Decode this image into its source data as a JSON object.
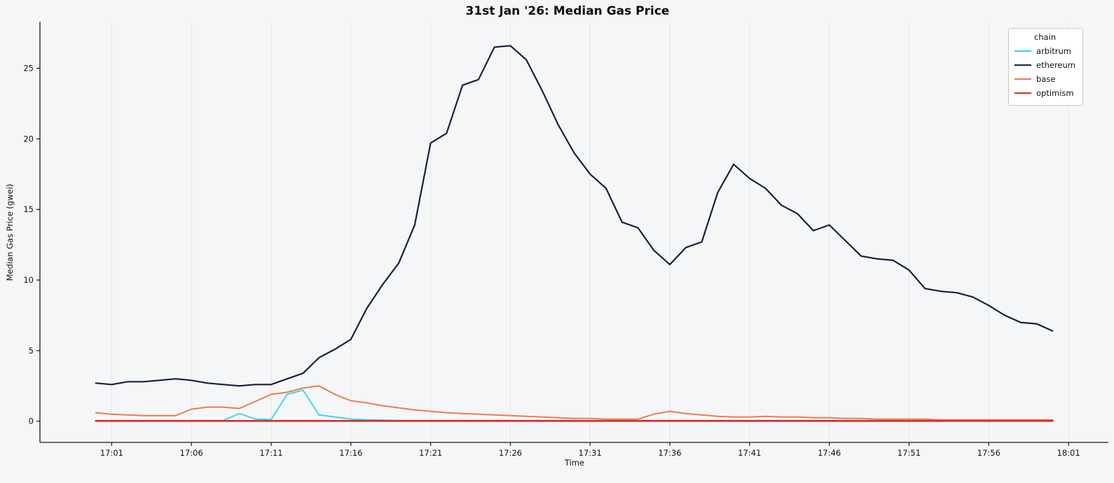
{
  "chart_data": {
    "type": "line",
    "title": "31st Jan '26: Median Gas Price",
    "xlabel": "Time",
    "ylabel": "Median Gas Price (gwei)",
    "legend_title": "chain",
    "legend_position": "upper right",
    "grid": "vertical",
    "grid_color": "#e4e5e7",
    "background_color": "#f5f6f7",
    "x_tick_labels": [
      "17:01",
      "17:06",
      "17:11",
      "17:16",
      "17:21",
      "17:26",
      "17:31",
      "17:36",
      "17:41",
      "17:46",
      "17:51",
      "17:56",
      "18:01"
    ],
    "x_tick_minutes": [
      1,
      6,
      11,
      16,
      21,
      26,
      31,
      36,
      41,
      46,
      51,
      56,
      61
    ],
    "y_ticks": [
      0,
      5,
      10,
      15,
      20,
      25
    ],
    "xlim_minutes": [
      -3.5,
      63.5
    ],
    "ylim": [
      -1.5,
      28.2
    ],
    "x_minutes": [
      0,
      1,
      2,
      3,
      4,
      5,
      6,
      7,
      8,
      9,
      10,
      11,
      12,
      13,
      14,
      15,
      16,
      17,
      18,
      19,
      20,
      21,
      22,
      23,
      24,
      25,
      26,
      27,
      28,
      29,
      30,
      31,
      32,
      33,
      34,
      35,
      36,
      37,
      38,
      39,
      40,
      41,
      42,
      43,
      44,
      45,
      46,
      47,
      48,
      49,
      50,
      51,
      52,
      53,
      54,
      55,
      56,
      57,
      58,
      59,
      60
    ],
    "series": [
      {
        "name": "arbitrum",
        "color": "#2fd5e8",
        "width": 1.8,
        "values": [
          0.03,
          0.03,
          0.03,
          0.03,
          0.03,
          0.03,
          0.03,
          0.03,
          0.05,
          0.55,
          0.15,
          0.12,
          1.9,
          2.2,
          0.45,
          0.3,
          0.15,
          0.1,
          0.08,
          0.05,
          0.05,
          0.05,
          0.05,
          0.05,
          0.05,
          0.05,
          0.05,
          0.05,
          0.05,
          0.05,
          0.05,
          0.05,
          0.05,
          0.05,
          0.05,
          0.05,
          0.05,
          0.05,
          0.05,
          0.05,
          0.05,
          0.05,
          0.05,
          0.05,
          0.05,
          0.05,
          0.05,
          0.05,
          0.05,
          0.05,
          0.05,
          0.05,
          0.05,
          0.05,
          0.05,
          0.05,
          0.05,
          0.05,
          0.05,
          0.05,
          0.05
        ]
      },
      {
        "name": "ethereum",
        "color": "#16203f",
        "width": 2.2,
        "values": [
          2.7,
          2.6,
          2.8,
          2.8,
          2.9,
          3.0,
          2.9,
          2.7,
          2.6,
          2.5,
          2.6,
          2.6,
          3.0,
          3.4,
          4.5,
          5.1,
          5.8,
          8.0,
          9.7,
          11.2,
          13.9,
          19.7,
          20.4,
          23.8,
          24.2,
          26.5,
          26.6,
          25.6,
          23.4,
          21.0,
          19.0,
          17.5,
          16.5,
          14.1,
          13.7,
          12.1,
          11.1,
          12.3,
          12.7,
          16.2,
          18.2,
          17.2,
          16.5,
          15.3,
          14.7,
          13.5,
          13.9,
          12.8,
          11.7,
          11.5,
          11.4,
          10.7,
          9.4,
          9.2,
          9.1,
          8.8,
          8.2,
          7.5,
          7.0,
          6.9,
          6.4
        ]
      },
      {
        "name": "base",
        "color": "#ec7c4f",
        "width": 2.0,
        "values": [
          0.6,
          0.5,
          0.45,
          0.4,
          0.4,
          0.4,
          0.85,
          1.0,
          1.0,
          0.9,
          1.4,
          1.9,
          2.05,
          2.35,
          2.5,
          1.9,
          1.45,
          1.3,
          1.1,
          0.95,
          0.8,
          0.7,
          0.6,
          0.55,
          0.5,
          0.45,
          0.4,
          0.35,
          0.3,
          0.25,
          0.2,
          0.2,
          0.15,
          0.15,
          0.15,
          0.5,
          0.7,
          0.55,
          0.45,
          0.35,
          0.3,
          0.3,
          0.35,
          0.3,
          0.3,
          0.25,
          0.25,
          0.2,
          0.2,
          0.15,
          0.15,
          0.15,
          0.15,
          0.1,
          0.1,
          0.1,
          0.1,
          0.1,
          0.1,
          0.1,
          0.1
        ]
      },
      {
        "name": "optimism",
        "color": "#d92b2b",
        "width": 2.6,
        "values": [
          0.02,
          0.02,
          0.02,
          0.02,
          0.02,
          0.02,
          0.02,
          0.02,
          0.02,
          0.02,
          0.02,
          0.02,
          0.02,
          0.02,
          0.02,
          0.02,
          0.02,
          0.02,
          0.02,
          0.02,
          0.02,
          0.02,
          0.02,
          0.02,
          0.02,
          0.02,
          0.02,
          0.02,
          0.02,
          0.02,
          0.02,
          0.02,
          0.02,
          0.02,
          0.02,
          0.02,
          0.02,
          0.02,
          0.02,
          0.02,
          0.02,
          0.02,
          0.02,
          0.02,
          0.02,
          0.02,
          0.02,
          0.02,
          0.02,
          0.02,
          0.02,
          0.02,
          0.02,
          0.02,
          0.02,
          0.02,
          0.02,
          0.02,
          0.02,
          0.02,
          0.02
        ]
      }
    ]
  }
}
